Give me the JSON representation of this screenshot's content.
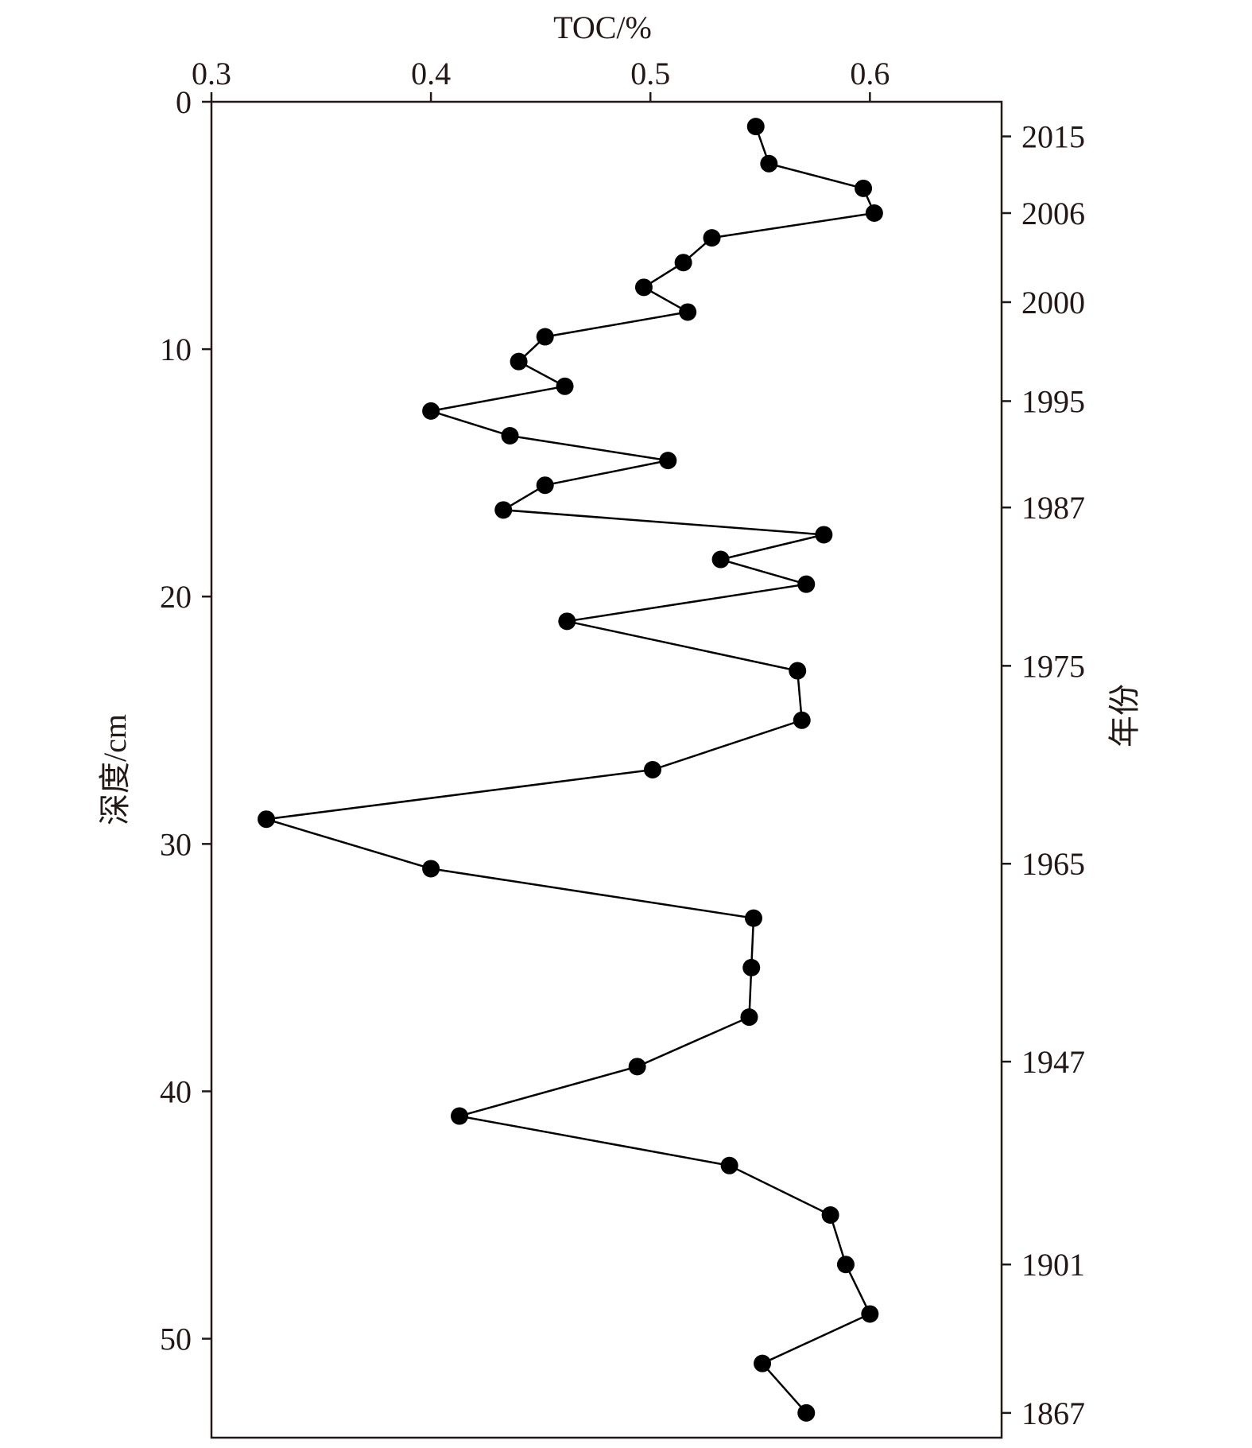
{
  "chart_data": {
    "type": "scatter",
    "mode": "line+markers",
    "orientation": "depth-profile",
    "xlabel": "TOC/%",
    "ylabel": "深度/cm",
    "y2label": "年份",
    "xlim": [
      0.3,
      0.66
    ],
    "ylim": [
      0,
      54
    ],
    "y_inverted": true,
    "x_ticks": [
      "0.3",
      "0.4",
      "0.5",
      "0.6"
    ],
    "y_ticks": [
      "0",
      "10",
      "20",
      "30",
      "40",
      "50"
    ],
    "year_ticks": [
      {
        "label": "2015",
        "depth": 1.4
      },
      {
        "label": "2006",
        "depth": 4.5
      },
      {
        "label": "2000",
        "depth": 8.1
      },
      {
        "label": "1995",
        "depth": 12.1
      },
      {
        "label": "1987",
        "depth": 16.4
      },
      {
        "label": "1975",
        "depth": 22.8
      },
      {
        "label": "1965",
        "depth": 30.8
      },
      {
        "label": "1947",
        "depth": 38.8
      },
      {
        "label": "1901",
        "depth": 47.0
      },
      {
        "label": "1867",
        "depth": 53.0
      }
    ],
    "series": [
      {
        "x": [
          0.548,
          0.554,
          0.597,
          0.602,
          0.528,
          0.515,
          0.497,
          0.517,
          0.452,
          0.44,
          0.461,
          0.4,
          0.436,
          0.508,
          0.452,
          0.433,
          0.579,
          0.532,
          0.571,
          0.462,
          0.567,
          0.569,
          0.501,
          0.325,
          0.4,
          0.547,
          0.546,
          0.545,
          0.494,
          0.413,
          0.536,
          0.582,
          0.589,
          0.6,
          0.551,
          0.571
        ],
        "y": [
          1,
          2.5,
          3.5,
          4.5,
          5.5,
          6.5,
          7.5,
          8.5,
          9.5,
          10.5,
          11.5,
          12.5,
          13.5,
          14.5,
          15.5,
          16.5,
          17.5,
          18.5,
          19.5,
          21,
          23,
          25,
          27,
          29,
          31,
          33,
          35,
          37,
          39,
          41,
          43,
          45,
          47,
          49,
          51,
          53
        ]
      }
    ],
    "colors": {
      "line": "#000000",
      "marker": "#000000",
      "axis": "#231815"
    },
    "grid": false,
    "legend": "none"
  }
}
